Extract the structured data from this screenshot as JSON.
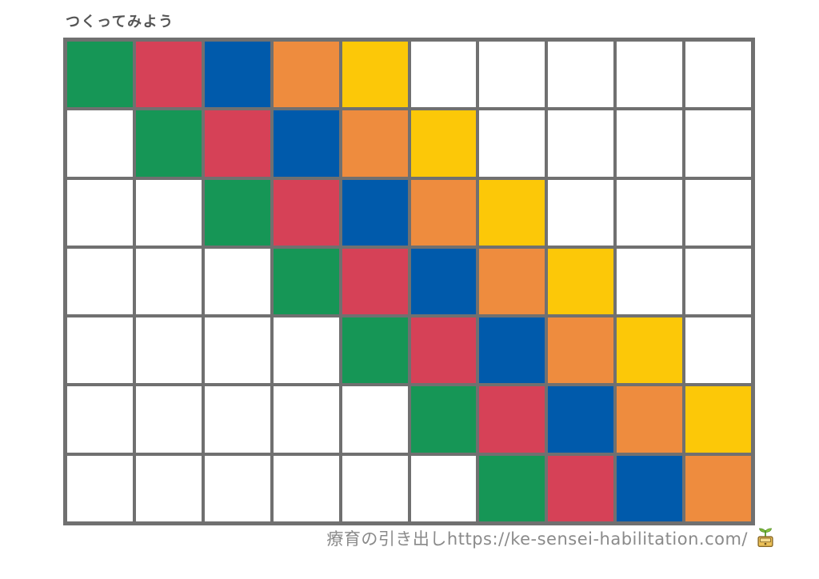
{
  "page": {
    "title": "つくってみよう",
    "footer_text": "療育の引き出しhttps://ke-sensei-habilitation.com/",
    "footer_icon": "sprout-drawer-icon"
  },
  "palette": {
    "green": "#169656",
    "red": "#D64157",
    "blue": "#005AAB",
    "orange": "#EE8C3E",
    "yellow": "#FCC808",
    "white": "#FFFFFF"
  },
  "text_colors": {
    "title": "#555555",
    "footer": "#8A8A8A"
  },
  "grid": {
    "columns": 10,
    "rows": 7,
    "line_color": "#707070",
    "cells": [
      [
        "green",
        "red",
        "blue",
        "orange",
        "yellow",
        "white",
        "white",
        "white",
        "white",
        "white"
      ],
      [
        "white",
        "green",
        "red",
        "blue",
        "orange",
        "yellow",
        "white",
        "white",
        "white",
        "white"
      ],
      [
        "white",
        "white",
        "green",
        "red",
        "blue",
        "orange",
        "yellow",
        "white",
        "white",
        "white"
      ],
      [
        "white",
        "white",
        "white",
        "green",
        "red",
        "blue",
        "orange",
        "yellow",
        "white",
        "white"
      ],
      [
        "white",
        "white",
        "white",
        "white",
        "green",
        "red",
        "blue",
        "orange",
        "yellow",
        "white"
      ],
      [
        "white",
        "white",
        "white",
        "white",
        "white",
        "green",
        "red",
        "blue",
        "orange",
        "yellow"
      ],
      [
        "white",
        "white",
        "white",
        "white",
        "white",
        "white",
        "green",
        "red",
        "blue",
        "orange"
      ]
    ]
  }
}
